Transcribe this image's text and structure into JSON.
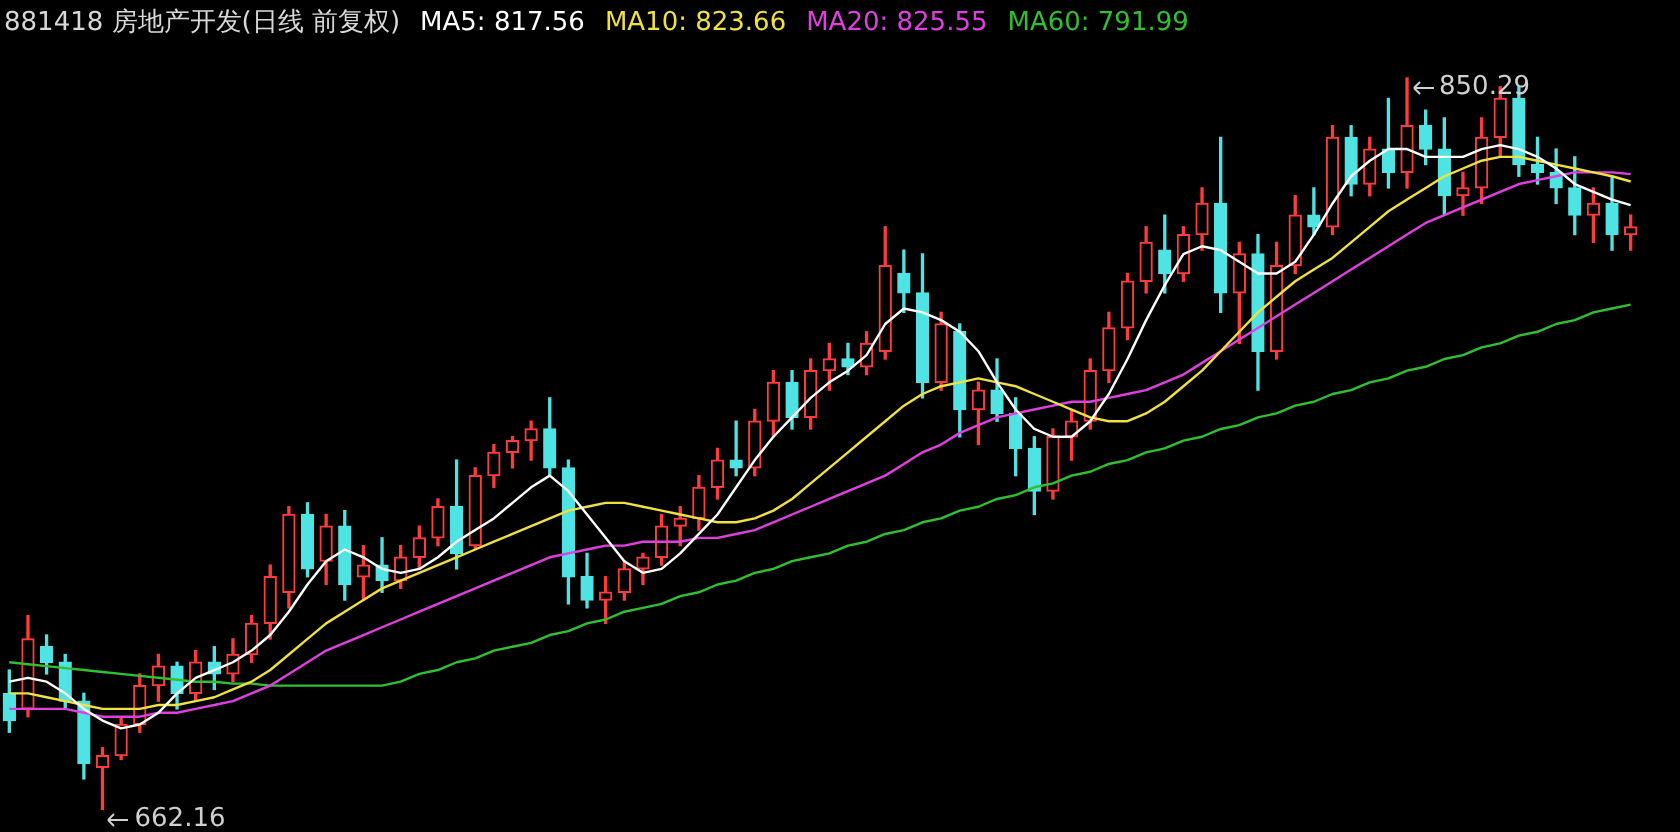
{
  "chart_data": {
    "type": "candlestick",
    "title": "881418 房地产开发(日线 前复权)",
    "legend": "top left",
    "tick_labels": false,
    "categories": [
      null,
      null,
      null,
      null,
      null,
      null,
      null,
      null,
      null,
      null,
      null,
      null,
      null,
      null,
      null,
      null,
      null,
      null,
      null,
      null,
      null,
      null,
      null,
      null,
      null,
      null,
      null,
      null,
      null,
      null,
      null,
      null,
      null,
      null,
      null,
      null,
      null,
      null,
      null,
      null,
      null,
      null,
      null,
      null,
      null,
      null,
      null,
      null,
      null,
      null,
      null,
      null,
      null,
      null,
      null,
      null,
      null,
      null,
      null,
      null,
      null,
      null,
      null,
      null,
      null,
      null,
      null,
      null,
      null,
      null,
      null,
      null,
      null,
      null,
      null,
      null,
      null,
      null,
      null,
      null,
      null,
      null,
      null,
      null,
      null,
      null,
      null,
      null
    ],
    "ohlc": [
      [
        692,
        698,
        682,
        685
      ],
      [
        688,
        712,
        686,
        706
      ],
      [
        704,
        707,
        697,
        700
      ],
      [
        700,
        702,
        688,
        690
      ],
      [
        690,
        692,
        670,
        674
      ],
      [
        673,
        678,
        662.16,
        676
      ],
      [
        676,
        686,
        675,
        684
      ],
      [
        684,
        697,
        682,
        694
      ],
      [
        694,
        702,
        690,
        699
      ],
      [
        699,
        700,
        688,
        692
      ],
      [
        692,
        703,
        690,
        700
      ],
      [
        700,
        704,
        693,
        697
      ],
      [
        697,
        706,
        695,
        702
      ],
      [
        702,
        712,
        700,
        710
      ],
      [
        710,
        725,
        706,
        722
      ],
      [
        718,
        740,
        714,
        738
      ],
      [
        738,
        741,
        722,
        724
      ],
      [
        726,
        738,
        720,
        735
      ],
      [
        735,
        739,
        716,
        720
      ],
      [
        722,
        730,
        716,
        725
      ],
      [
        725,
        732,
        718,
        721
      ],
      [
        721,
        730,
        719,
        727
      ],
      [
        727,
        735,
        724,
        732
      ],
      [
        732,
        742,
        730,
        740
      ],
      [
        740,
        752,
        724,
        728
      ],
      [
        730,
        750,
        729,
        748
      ],
      [
        748,
        756,
        745,
        754
      ],
      [
        754,
        758,
        750,
        757
      ],
      [
        757,
        762,
        752,
        760
      ],
      [
        760,
        768,
        748,
        750
      ],
      [
        750,
        752,
        715,
        722
      ],
      [
        722,
        728,
        714,
        716
      ],
      [
        716,
        722,
        710,
        718
      ],
      [
        718,
        726,
        716,
        724
      ],
      [
        724,
        728,
        720,
        727
      ],
      [
        727,
        738,
        725,
        735
      ],
      [
        735,
        740,
        730,
        737
      ],
      [
        737,
        748,
        734,
        745
      ],
      [
        745,
        755,
        742,
        752
      ],
      [
        752,
        762,
        748,
        750
      ],
      [
        750,
        765,
        748,
        762
      ],
      [
        762,
        775,
        758,
        772
      ],
      [
        772,
        775,
        760,
        763
      ],
      [
        763,
        778,
        760,
        775
      ],
      [
        775,
        782,
        770,
        778
      ],
      [
        778,
        782,
        774,
        776
      ],
      [
        776,
        785,
        774,
        782
      ],
      [
        780,
        812,
        778,
        802
      ],
      [
        800,
        806,
        790,
        795
      ],
      [
        795,
        805,
        768,
        772
      ],
      [
        772,
        790,
        770,
        787
      ],
      [
        785,
        787,
        758,
        765
      ],
      [
        765,
        772,
        756,
        770
      ],
      [
        770,
        778,
        762,
        764
      ],
      [
        764,
        768,
        748,
        755
      ],
      [
        755,
        758,
        738,
        744
      ],
      [
        744,
        760,
        742,
        758
      ],
      [
        758,
        765,
        752,
        762
      ],
      [
        762,
        778,
        760,
        775
      ],
      [
        775,
        790,
        772,
        786
      ],
      [
        786,
        800,
        783,
        798
      ],
      [
        798,
        812,
        795,
        808
      ],
      [
        806,
        815,
        795,
        800
      ],
      [
        800,
        812,
        798,
        810
      ],
      [
        810,
        822,
        806,
        818
      ],
      [
        818,
        835,
        790,
        795
      ],
      [
        795,
        808,
        782,
        805
      ],
      [
        805,
        810,
        770,
        780
      ],
      [
        780,
        808,
        778,
        802
      ],
      [
        802,
        820,
        800,
        815
      ],
      [
        815,
        822,
        810,
        812
      ],
      [
        812,
        838,
        810,
        835
      ],
      [
        835,
        838,
        820,
        823
      ],
      [
        823,
        835,
        820,
        832
      ],
      [
        832,
        845,
        822,
        826
      ],
      [
        826,
        850.29,
        822,
        838
      ],
      [
        838,
        842,
        828,
        832
      ],
      [
        832,
        840,
        815,
        820
      ],
      [
        820,
        826,
        815,
        822
      ],
      [
        822,
        840,
        818,
        835
      ],
      [
        835,
        848,
        830,
        845
      ],
      [
        845,
        848,
        825,
        828
      ],
      [
        828,
        835,
        823,
        826
      ],
      [
        826,
        832,
        818,
        822
      ],
      [
        822,
        830,
        810,
        815
      ],
      [
        815,
        822,
        808,
        818
      ],
      [
        818,
        825,
        806,
        810
      ],
      [
        810,
        815,
        806,
        812
      ]
    ],
    "series": [
      {
        "type": "line",
        "name": "MA5: 817.56",
        "color": "#ffffff",
        "values": [
          695,
          696,
          695,
          692,
          688,
          685,
          683,
          684,
          687,
          692,
          696,
          698,
          700,
          703,
          707,
          713,
          720,
          726,
          729,
          727,
          724,
          723,
          724,
          727,
          731,
          734,
          737,
          741,
          745,
          748,
          744,
          738,
          732,
          726,
          723,
          724,
          728,
          733,
          738,
          745,
          752,
          758,
          763,
          768,
          772,
          775,
          779,
          787,
          791,
          790,
          788,
          785,
          780,
          772,
          765,
          760,
          758,
          758,
          762,
          769,
          778,
          788,
          797,
          805,
          807,
          806,
          803,
          800,
          800,
          803,
          810,
          818,
          825,
          829,
          832,
          832,
          830,
          830,
          830,
          832,
          833,
          832,
          830,
          827,
          823,
          821,
          819,
          817.56
        ]
      },
      {
        "type": "line",
        "name": "MA10: 823.66",
        "color": "#f0e040",
        "values": [
          692,
          692,
          691,
          690,
          689,
          688,
          688,
          688,
          689,
          689,
          690,
          691,
          693,
          695,
          698,
          702,
          706,
          710,
          713,
          716,
          719,
          721,
          723,
          725,
          727,
          729,
          731,
          733,
          735,
          737,
          739,
          740,
          741,
          741,
          740,
          739,
          738,
          737,
          736,
          736,
          737,
          739,
          742,
          746,
          750,
          754,
          758,
          762,
          766,
          769,
          771,
          772,
          773,
          772,
          771,
          769,
          767,
          765,
          763,
          762,
          762,
          764,
          767,
          771,
          775,
          780,
          785,
          790,
          794,
          798,
          801,
          804,
          808,
          812,
          816,
          819,
          822,
          825,
          827,
          829,
          830,
          830,
          829,
          828,
          827,
          826,
          825,
          823.66
        ]
      },
      {
        "type": "line",
        "name": "MA20: 825.55",
        "color": "#e040e0",
        "values": [
          688,
          688,
          688,
          688,
          687,
          686,
          686,
          686,
          687,
          687,
          688,
          689,
          690,
          692,
          694,
          697,
          700,
          703,
          705,
          707,
          709,
          711,
          713,
          715,
          717,
          719,
          721,
          723,
          725,
          727,
          728,
          729,
          730,
          730,
          731,
          731,
          731,
          732,
          732,
          733,
          734,
          736,
          738,
          740,
          742,
          744,
          746,
          748,
          751,
          754,
          756,
          759,
          761,
          763,
          764,
          765,
          766,
          767,
          767,
          768,
          769,
          770,
          772,
          774,
          777,
          780,
          783,
          786,
          789,
          792,
          795,
          798,
          801,
          804,
          807,
          810,
          813,
          815,
          817,
          819,
          821,
          823,
          824,
          825,
          826,
          826,
          826,
          825.55
        ]
      },
      {
        "type": "line",
        "name": "MA60: 791.99",
        "color": "#30c030",
        "values": [
          700,
          699.5,
          699,
          698.5,
          698,
          697.5,
          697,
          696.5,
          696,
          695.5,
          695,
          695,
          694.5,
          694.5,
          694,
          694,
          694,
          694,
          694,
          694,
          694,
          695,
          697,
          698,
          700,
          701,
          703,
          704,
          705,
          707,
          708,
          710,
          711,
          713,
          714,
          715,
          717,
          718,
          720,
          721,
          723,
          724,
          726,
          727,
          728,
          730,
          731,
          733,
          734,
          736,
          737,
          739,
          740,
          742,
          743,
          745,
          746,
          748,
          749,
          751,
          752,
          754,
          755,
          757,
          758,
          760,
          761,
          763,
          764,
          766,
          767,
          769,
          770,
          772,
          773,
          775,
          776,
          778,
          779,
          781,
          782,
          784,
          785,
          787,
          788,
          790,
          791,
          791.99
        ]
      }
    ],
    "annotations": [
      "850.29",
      "662.16"
    ]
  }
}
